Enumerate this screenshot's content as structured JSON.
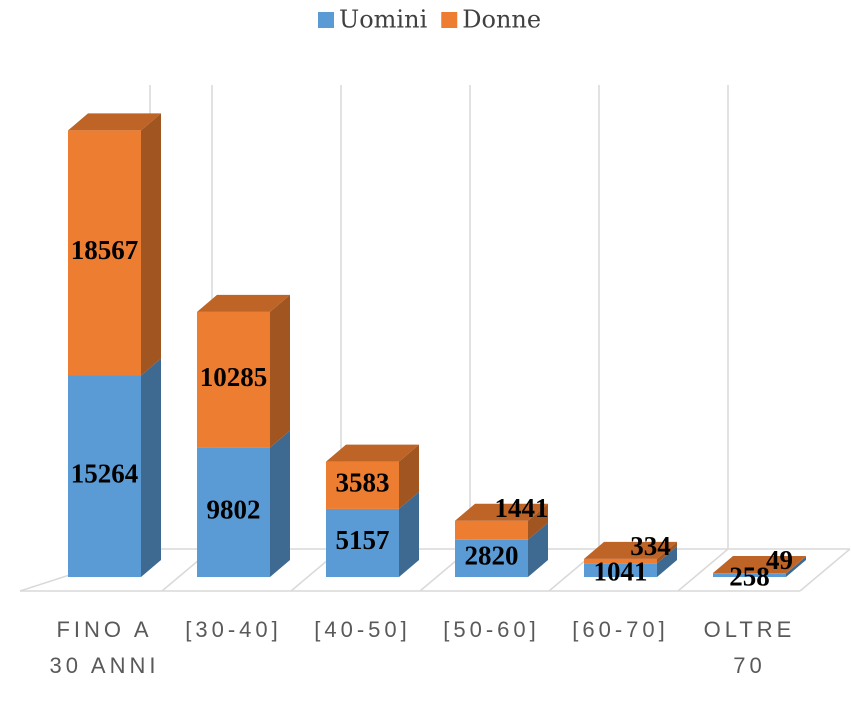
{
  "chart_data": {
    "type": "bar3d_stacked",
    "categories": [
      "FINO A 30 ANNI",
      "[30-40]",
      "[40-50]",
      "[50-60]",
      "[60-70]",
      "OLTRE 70"
    ],
    "series": [
      {
        "name": "Uomini",
        "color": "#5b9bd5",
        "values": [
          15264,
          9802,
          5157,
          2820,
          1041,
          258
        ]
      },
      {
        "name": "Donne",
        "color": "#ed7d31",
        "values": [
          18567,
          10285,
          3583,
          1441,
          334,
          49
        ]
      }
    ],
    "ylim": [
      0,
      35000
    ],
    "legend": "top"
  }
}
